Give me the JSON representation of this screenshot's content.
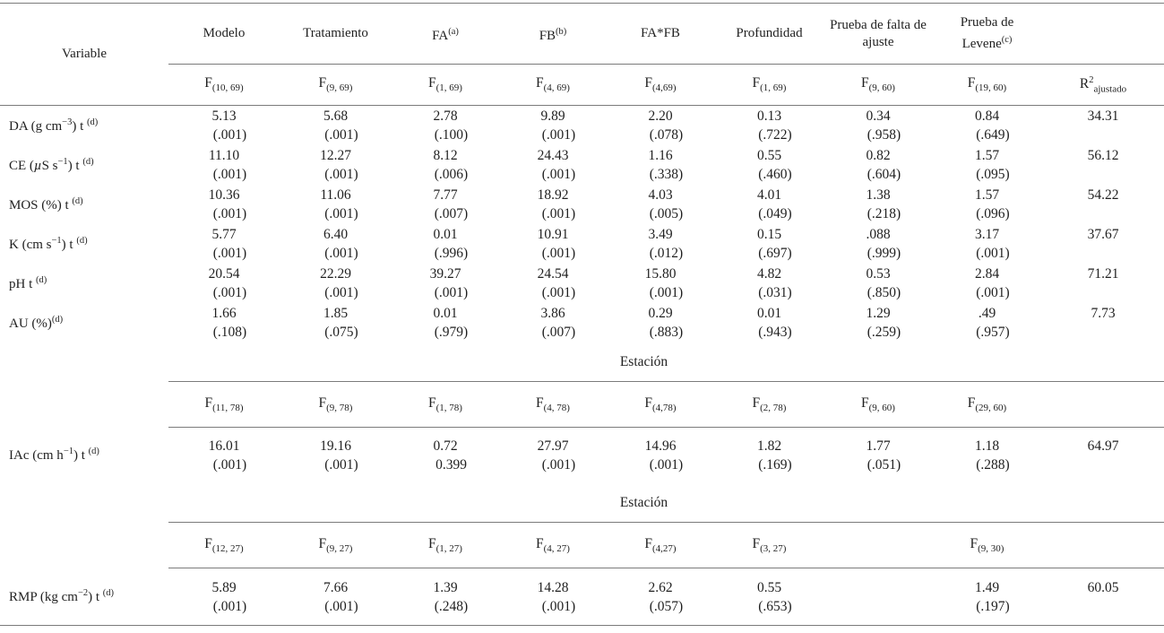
{
  "colors": {
    "text": "#1f1f1f",
    "rule": "#7b7b7b",
    "background": "#ffffff"
  },
  "table": {
    "variable_header": "Variable",
    "estacion_label": "Estación",
    "column_headers_html": [
      "Modelo",
      "Tratamiento",
      "FA<sup>(a)</sup>",
      "FB<sup>(b)</sup>",
      "FA*FB",
      "Profundidad",
      "Prueba de falta de ajuste",
      "Prueba de Levene<sup>(c)</sup>"
    ],
    "r2_header_html": "R<sup>2</sup><sub>ajustado</sub>",
    "f_row_1_html": [
      "F<sub>(10, 69)</sub>",
      "F<sub>(9, 69)</sub>",
      "F<sub>(1, 69)</sub>",
      "F<sub>(4, 69)</sub>",
      "F<sub>(4,69)</sub>",
      "F<sub>(1, 69)</sub>",
      "F<sub>(9, 60)</sub>",
      "F<sub>(19, 60)</sub>"
    ],
    "sections": [
      {
        "has_estacion": false,
        "f_labels_html": null,
        "rows": [
          {
            "variable_html": "DA (g cm<sup>−3</sup>) t <sup>(d)</sup>",
            "cells": [
              [
                "5.13",
                "(.001)"
              ],
              [
                "5.68",
                "(.001)"
              ],
              [
                "2.78",
                "(.100)"
              ],
              [
                "9.89",
                "(.001)"
              ],
              [
                "2.20",
                "(.078)"
              ],
              [
                "0.13",
                "(.722)"
              ],
              [
                "0.34",
                "(.958)"
              ],
              [
                "0.84",
                "(.649)"
              ]
            ],
            "r2": "34.31"
          },
          {
            "variable_html": "CE (<i>µ</i>S s<sup>−1</sup>) t <sup>(d)</sup>",
            "cells": [
              [
                "11.10",
                "(.001)"
              ],
              [
                "12.27",
                "(.001)"
              ],
              [
                "8.12",
                "(.006)"
              ],
              [
                "24.43",
                "(.001)"
              ],
              [
                "1.16",
                "(.338)"
              ],
              [
                "0.55",
                "(.460)"
              ],
              [
                "0.82",
                "(.604)"
              ],
              [
                "1.57",
                "(.095)"
              ]
            ],
            "r2": "56.12"
          },
          {
            "variable_html": "MOS (%) t <sup>(d)</sup>",
            "cells": [
              [
                "10.36",
                "(.001)"
              ],
              [
                "11.06",
                "(.001)"
              ],
              [
                "7.77",
                "(.007)"
              ],
              [
                "18.92",
                "(.001)"
              ],
              [
                "4.03",
                "(.005)"
              ],
              [
                "4.01",
                "(.049)"
              ],
              [
                "1.38",
                "(.218)"
              ],
              [
                "1.57",
                "(.096)"
              ]
            ],
            "r2": "54.22"
          },
          {
            "variable_html": "K (cm s<sup>−1</sup>) t <sup>(d)</sup>",
            "cells": [
              [
                "5.77",
                "(.001)"
              ],
              [
                "6.40",
                "(.001)"
              ],
              [
                "0.01",
                "(.996)"
              ],
              [
                "10.91",
                "(.001)"
              ],
              [
                "3.49",
                "(.012)"
              ],
              [
                "0.15",
                "(.697)"
              ],
              [
                ".088",
                "(.999)"
              ],
              [
                "3.17",
                "(.001)"
              ]
            ],
            "r2": "37.67"
          },
          {
            "variable_html": "pH t <sup>(d)</sup>",
            "cells": [
              [
                "20.54",
                "(.001)"
              ],
              [
                "22.29",
                "(.001)"
              ],
              [
                "39.27",
                "(.001)"
              ],
              [
                "24.54",
                "(.001)"
              ],
              [
                "15.80",
                "(.001)"
              ],
              [
                "4.82",
                "(.031)"
              ],
              [
                "0.53",
                "(.850)"
              ],
              [
                "2.84",
                "(.001)"
              ]
            ],
            "r2": "71.21"
          },
          {
            "variable_html": "AU (%)<sup>(d)</sup>",
            "cells": [
              [
                "1.66",
                "(.108)"
              ],
              [
                "1.85",
                "(.075)"
              ],
              [
                "0.01",
                "(.979)"
              ],
              [
                "3.86",
                "(.007)"
              ],
              [
                "0.29",
                "(.883)"
              ],
              [
                "0.01",
                "(.943)"
              ],
              [
                "1.29",
                "(.259)"
              ],
              [
                ".49",
                "(.957)"
              ]
            ],
            "r2": "7.73"
          }
        ]
      },
      {
        "has_estacion": true,
        "f_labels_html": [
          "F<sub>(11, 78)</sub>",
          "F<sub>(9, 78)</sub>",
          "F<sub>(1, 78)</sub>",
          "F<sub>(4, 78)</sub>",
          "F<sub>(4,78)</sub>",
          "F<sub>(2, 78)</sub>",
          "F<sub>(9, 60)</sub>",
          "F<sub>(29, 60)</sub>"
        ],
        "rows": [
          {
            "variable_html": "IAc (cm h<sup>−1</sup>) t <sup>(d)</sup>",
            "cells": [
              [
                "16.01",
                "(.001)"
              ],
              [
                "19.16",
                "(.001)"
              ],
              [
                "0.72",
                "0.399"
              ],
              [
                "27.97",
                "(.001)"
              ],
              [
                "14.96",
                "(.001)"
              ],
              [
                "1.82",
                "(.169)"
              ],
              [
                "1.77",
                "(.051)"
              ],
              [
                "1.18",
                "(.288)"
              ]
            ],
            "r2": "64.97"
          }
        ]
      },
      {
        "has_estacion": true,
        "f_labels_html": [
          "F<sub>(12, 27)</sub>",
          "F<sub>(9, 27)</sub>",
          "F<sub>(1, 27)</sub>",
          "F<sub>(4, 27)</sub>",
          "F<sub>(4,27)</sub>",
          "F<sub>(3, 27)</sub>",
          "",
          "F<sub>(9, 30)</sub>"
        ],
        "rows": [
          {
            "variable_html": "RMP (kg cm<sup>−2</sup>) t <sup>(d)</sup>",
            "cells": [
              [
                "5.89",
                "(.001)"
              ],
              [
                "7.66",
                "(.001)"
              ],
              [
                "1.39",
                "(.248)"
              ],
              [
                "14.28",
                "(.001)"
              ],
              [
                "2.62",
                "(.057)"
              ],
              [
                "0.55",
                "(.653)"
              ],
              null,
              [
                "1.49",
                "(.197)"
              ]
            ],
            "r2": "60.05"
          }
        ]
      }
    ]
  }
}
